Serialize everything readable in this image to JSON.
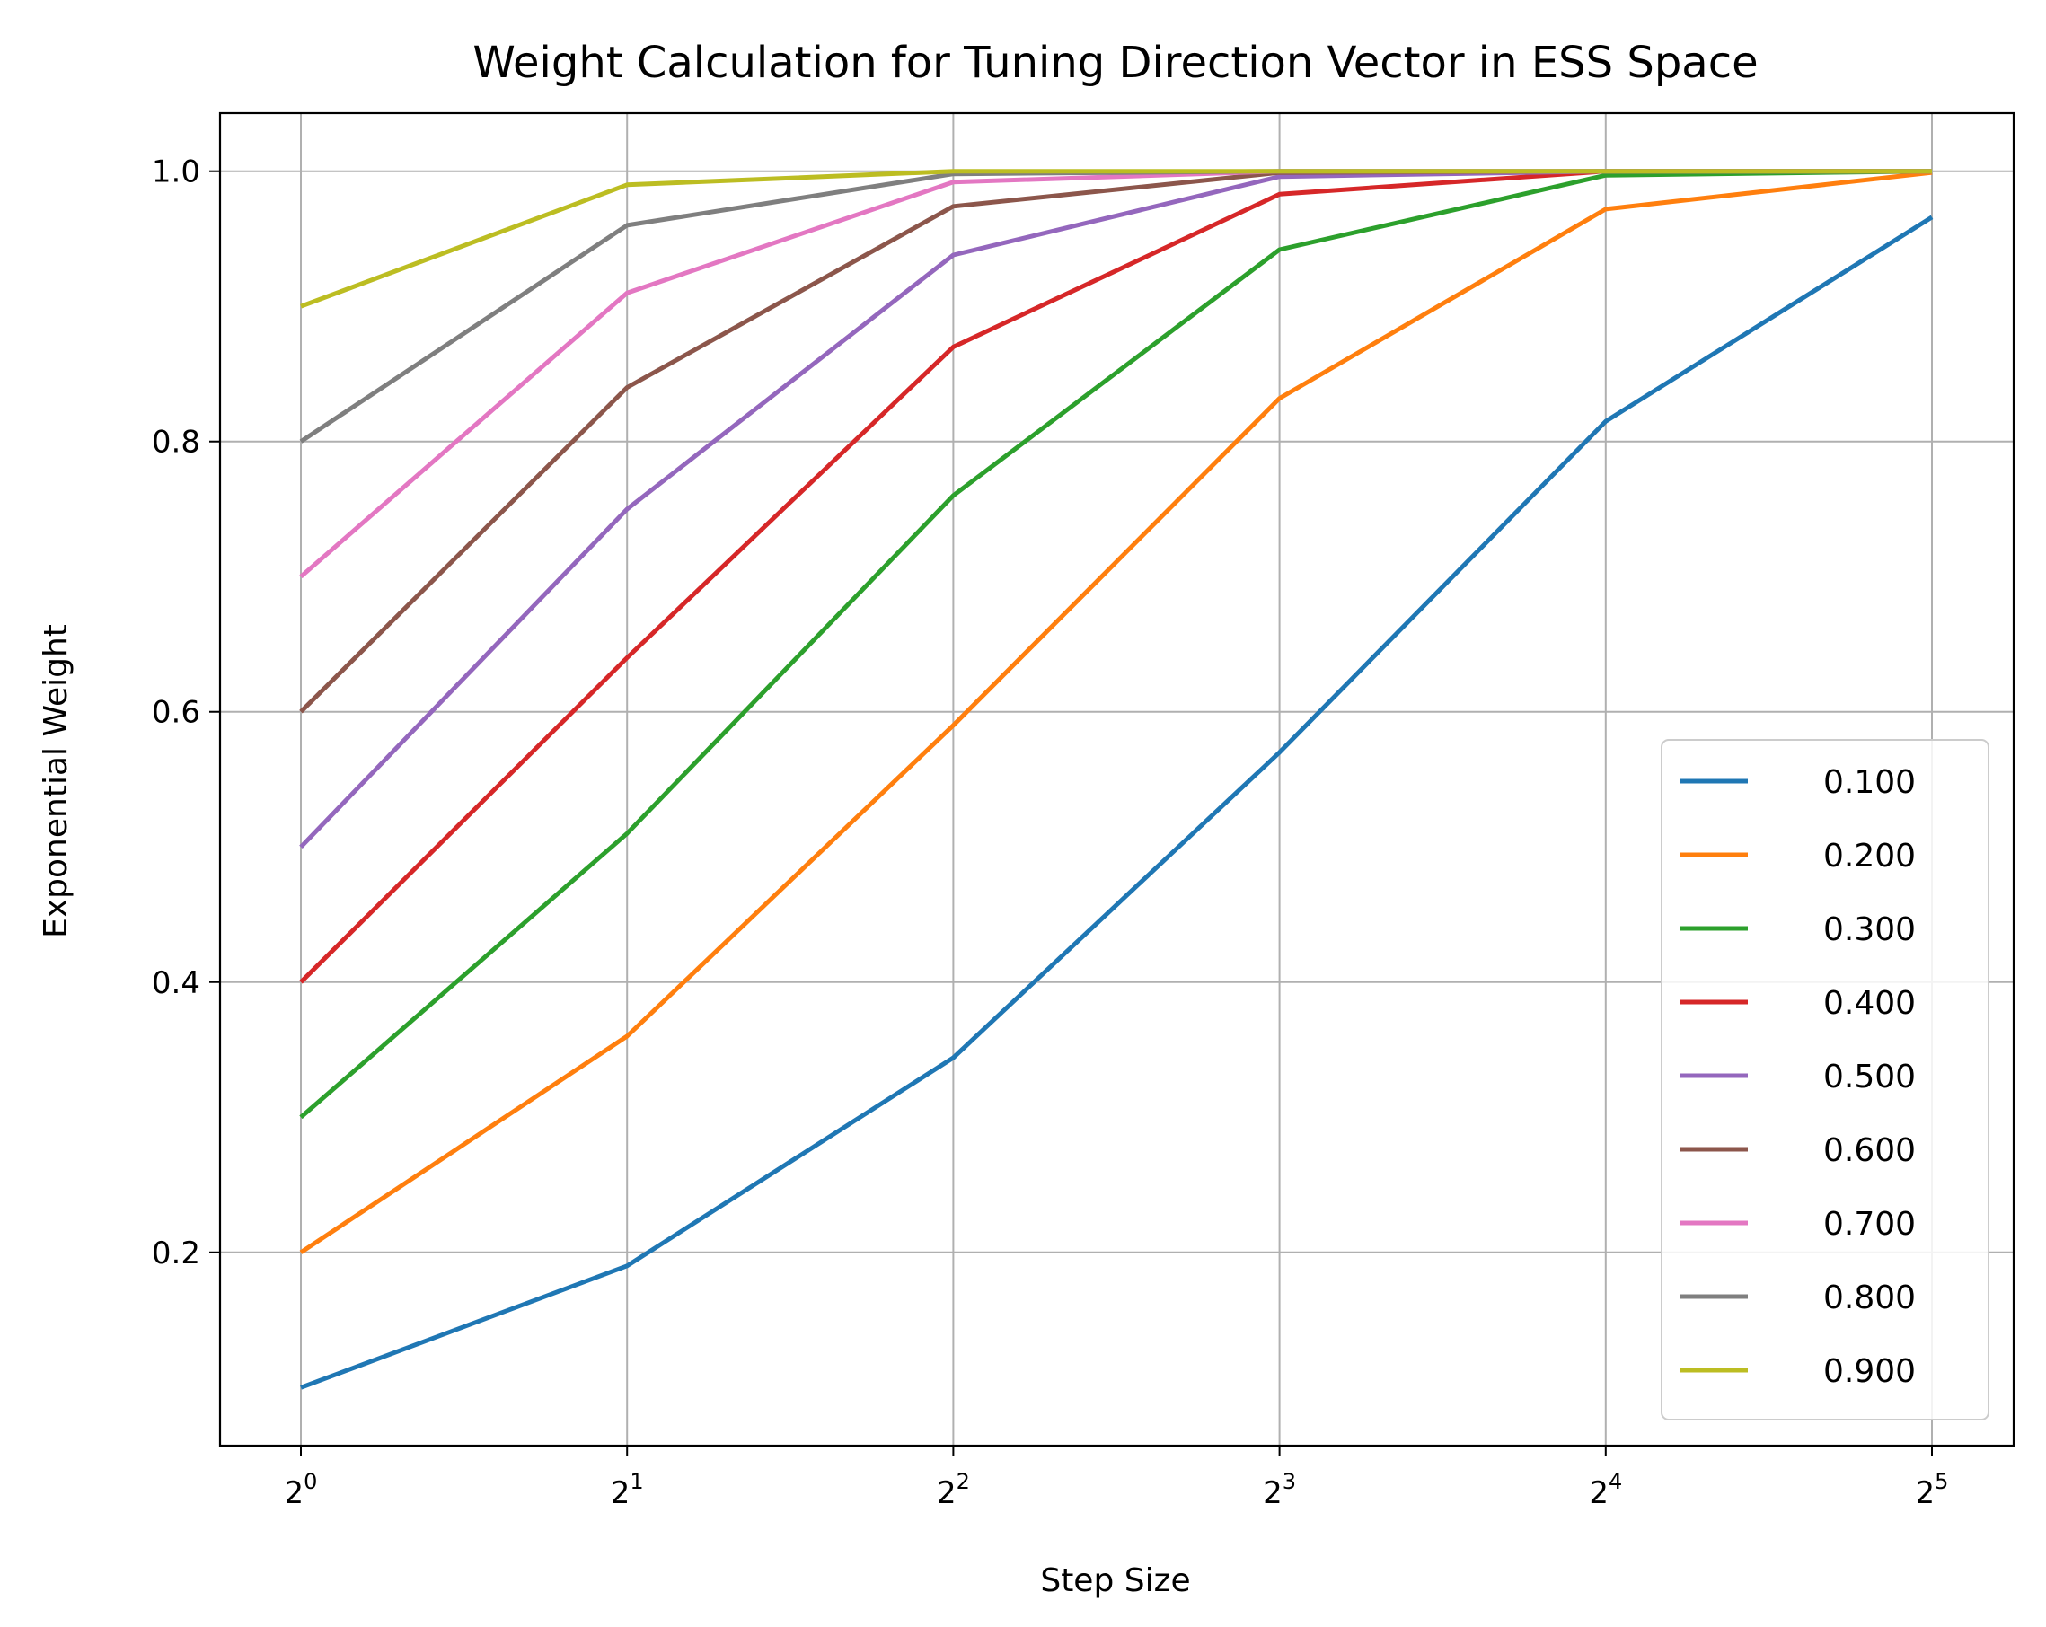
{
  "chart_data": {
    "type": "line",
    "title": "Weight Calculation for Tuning Direction Vector in ESS Space",
    "xlabel": "Step Size",
    "ylabel": "Exponential Weight",
    "x_scale": "log2",
    "x": [
      1,
      2,
      4,
      8,
      16,
      32
    ],
    "x_tick_labels": [
      {
        "base": "2",
        "exp": "0"
      },
      {
        "base": "2",
        "exp": "1"
      },
      {
        "base": "2",
        "exp": "2"
      },
      {
        "base": "2",
        "exp": "3"
      },
      {
        "base": "2",
        "exp": "4"
      },
      {
        "base": "2",
        "exp": "5"
      }
    ],
    "y_ticks": [
      "0.2",
      "0.4",
      "0.6",
      "0.8",
      "1.0"
    ],
    "ylim": [
      0.057,
      1.043
    ],
    "grid": true,
    "legend_position": "lower-right",
    "series": [
      {
        "name": "0.100",
        "color": "#1f77b4",
        "values": [
          0.1,
          0.19,
          0.344,
          0.57,
          0.815,
          0.966
        ]
      },
      {
        "name": "0.200",
        "color": "#ff7f0e",
        "values": [
          0.2,
          0.36,
          0.59,
          0.832,
          0.972,
          0.999
        ]
      },
      {
        "name": "0.300",
        "color": "#2ca02c",
        "values": [
          0.3,
          0.51,
          0.76,
          0.942,
          0.997,
          1.0
        ]
      },
      {
        "name": "0.400",
        "color": "#d62728",
        "values": [
          0.4,
          0.64,
          0.87,
          0.983,
          1.0,
          1.0
        ]
      },
      {
        "name": "0.500",
        "color": "#9467bd",
        "values": [
          0.5,
          0.75,
          0.938,
          0.996,
          1.0,
          1.0
        ]
      },
      {
        "name": "0.600",
        "color": "#8c564b",
        "values": [
          0.6,
          0.84,
          0.974,
          0.999,
          1.0,
          1.0
        ]
      },
      {
        "name": "0.700",
        "color": "#e377c2",
        "values": [
          0.7,
          0.91,
          0.992,
          1.0,
          1.0,
          1.0
        ]
      },
      {
        "name": "0.800",
        "color": "#7f7f7f",
        "values": [
          0.8,
          0.96,
          0.998,
          1.0,
          1.0,
          1.0
        ]
      },
      {
        "name": "0.900",
        "color": "#bcbd22",
        "values": [
          0.9,
          0.99,
          1.0,
          1.0,
          1.0,
          1.0
        ]
      }
    ]
  }
}
